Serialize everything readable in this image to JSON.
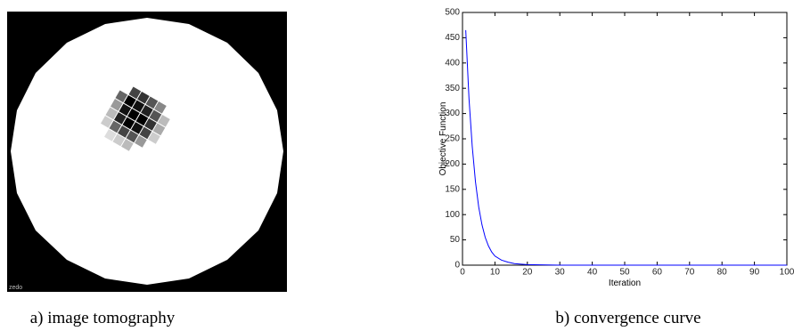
{
  "image": {
    "caption": "a) image tomography",
    "corner_label": "zedo"
  },
  "chart_data": {
    "type": "line",
    "caption": "b) convergence curve",
    "x_label": "Iteration",
    "y_label": "Objective Function",
    "x": [
      1,
      2,
      3,
      4,
      5,
      6,
      7,
      8,
      9,
      10,
      12,
      14,
      16,
      18,
      20,
      30,
      40,
      50,
      60,
      70,
      80,
      90,
      100
    ],
    "series": [
      {
        "name": "Objective Function",
        "color": "#0000ff",
        "values": [
          465,
          330,
          235,
          165,
          115,
          80,
          55,
          38,
          26,
          18,
          10,
          6,
          3,
          2,
          1,
          0,
          0,
          0,
          0,
          0,
          0,
          0,
          0
        ]
      }
    ],
    "xlim": [
      0,
      100
    ],
    "xticks": [
      0,
      10,
      20,
      30,
      40,
      50,
      60,
      70,
      80,
      90,
      100
    ],
    "ylim": [
      0,
      500
    ],
    "yticks": [
      0,
      50,
      100,
      150,
      200,
      250,
      300,
      350,
      400,
      450,
      500
    ]
  }
}
